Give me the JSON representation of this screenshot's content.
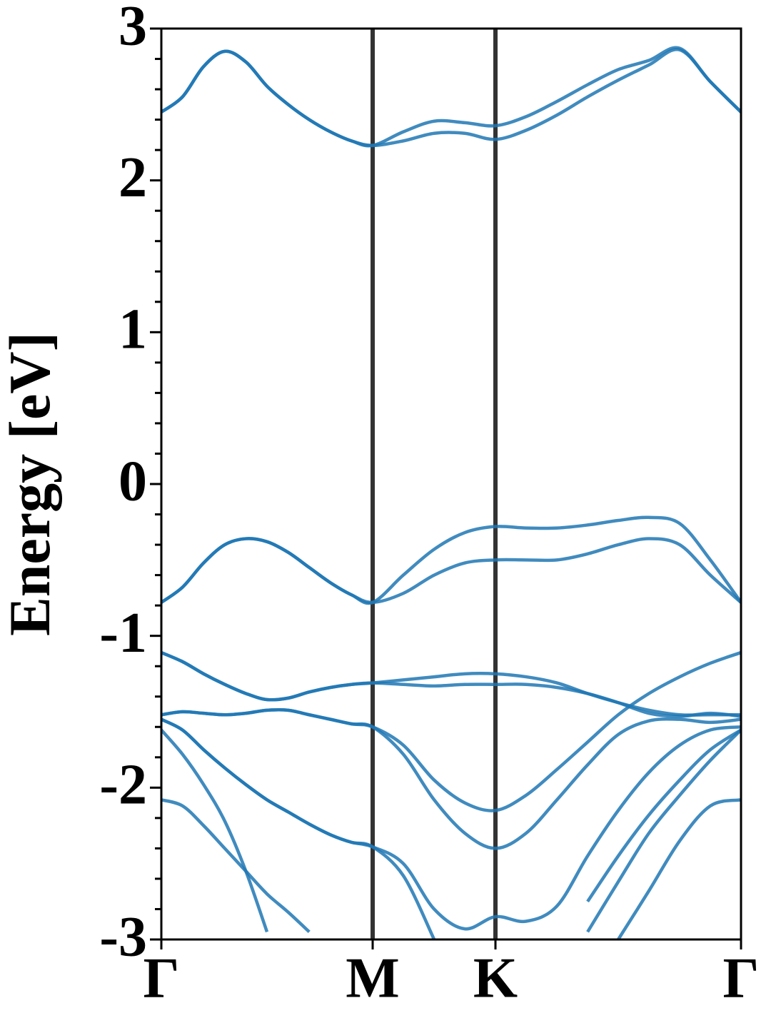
{
  "chart_data": {
    "type": "line",
    "y_label": "Energy [eV]",
    "x": [
      0,
      0.1,
      0.2,
      0.3,
      0.4,
      0.5,
      0.6,
      0.7,
      0.8,
      0.9,
      1.0,
      1.145,
      1.291,
      1.436,
      1.581,
      1.726,
      1.872,
      2.017,
      2.162,
      2.307,
      2.453,
      2.598,
      2.743
    ],
    "xlim": [
      0,
      2.743
    ],
    "xticks": [
      {
        "value": 0,
        "label": "Γ"
      },
      {
        "value": 1.0,
        "label": "M"
      },
      {
        "value": 1.581,
        "label": "K"
      },
      {
        "value": 2.743,
        "label": "Γ"
      }
    ],
    "ylim": [
      -3,
      3
    ],
    "yticks": [
      -3,
      -2,
      -1,
      0,
      1,
      2,
      3
    ],
    "yticks_minor": [
      -2.8,
      -2.6,
      -2.4,
      -2.2,
      -1.8,
      -1.6,
      -1.4,
      -1.2,
      -0.8,
      -0.6,
      -0.4,
      -0.2,
      0.2,
      0.4,
      0.6,
      0.8,
      1.2,
      1.4,
      1.6,
      1.8,
      2.2,
      2.4,
      2.6,
      2.8
    ],
    "symmetry_lines": true,
    "series": [
      {
        "color": "#1f77b4",
        "values": [
          2.45,
          2.55,
          2.75,
          2.85,
          2.78,
          2.62,
          2.5,
          2.4,
          2.32,
          2.26,
          2.23,
          2.26,
          2.31,
          2.31,
          2.27,
          2.33,
          2.43,
          2.55,
          2.66,
          2.76,
          2.86,
          2.65,
          2.45
        ]
      },
      {
        "color": "#1f77b4",
        "values": [
          2.45,
          2.55,
          2.75,
          2.85,
          2.78,
          2.62,
          2.5,
          2.4,
          2.32,
          2.26,
          2.23,
          2.32,
          2.39,
          2.38,
          2.36,
          2.42,
          2.52,
          2.63,
          2.73,
          2.79,
          2.87,
          2.65,
          2.45
        ]
      },
      {
        "color": "#1f77b4",
        "values": [
          -0.78,
          -0.68,
          -0.52,
          -0.4,
          -0.36,
          -0.38,
          -0.45,
          -0.55,
          -0.65,
          -0.73,
          -0.78,
          -0.6,
          -0.43,
          -0.32,
          -0.28,
          -0.29,
          -0.29,
          -0.27,
          -0.24,
          -0.22,
          -0.26,
          -0.5,
          -0.78
        ]
      },
      {
        "color": "#1f77b4",
        "values": [
          -0.78,
          -0.68,
          -0.52,
          -0.4,
          -0.36,
          -0.38,
          -0.45,
          -0.55,
          -0.65,
          -0.73,
          -0.78,
          -0.72,
          -0.6,
          -0.52,
          -0.5,
          -0.5,
          -0.5,
          -0.46,
          -0.4,
          -0.36,
          -0.4,
          -0.6,
          -0.78
        ]
      },
      {
        "color": "#1f77b4",
        "values": [
          -1.11,
          -1.17,
          -1.25,
          -1.32,
          -1.38,
          -1.42,
          -1.41,
          -1.37,
          -1.34,
          -1.32,
          -1.31,
          -1.29,
          -1.27,
          -1.25,
          -1.25,
          -1.27,
          -1.31,
          -1.38,
          -1.44,
          -1.49,
          -1.52,
          -1.52,
          -1.52
        ]
      },
      {
        "color": "#1f77b4",
        "values": [
          -1.11,
          -1.17,
          -1.25,
          -1.32,
          -1.38,
          -1.42,
          -1.41,
          -1.37,
          -1.34,
          -1.32,
          -1.31,
          -1.32,
          -1.33,
          -1.32,
          -1.32,
          -1.32,
          -1.34,
          -1.38,
          -1.44,
          -1.51,
          -1.53,
          -1.51,
          -1.53
        ]
      },
      {
        "color": "#1f77b4",
        "values": [
          -1.52,
          -1.5,
          -1.51,
          -1.52,
          -1.51,
          -1.49,
          -1.49,
          -1.52,
          -1.55,
          -1.58,
          -1.6,
          -1.72,
          -1.95,
          -2.1,
          -2.15,
          -2.05,
          -1.88,
          -1.7,
          -1.52,
          -1.38,
          -1.27,
          -1.18,
          -1.11
        ]
      },
      {
        "color": "#1f77b4",
        "values": [
          -1.52,
          -1.5,
          -1.51,
          -1.52,
          -1.51,
          -1.49,
          -1.49,
          -1.52,
          -1.55,
          -1.58,
          -1.6,
          -1.78,
          -2.08,
          -2.3,
          -2.4,
          -2.3,
          -2.08,
          -1.85,
          -1.65,
          -1.56,
          -1.55,
          -1.57,
          -1.55
        ]
      },
      {
        "color": "#1f77b4",
        "values": [
          -1.55,
          -1.62,
          -1.75,
          -1.87,
          -1.98,
          -2.08,
          -2.16,
          -2.24,
          -2.31,
          -2.36,
          -2.39,
          -2.5,
          -2.8,
          -2.93,
          -2.85,
          -2.88,
          -2.78,
          -2.45,
          -2.15,
          -1.9,
          -1.72,
          -1.62,
          -1.6
        ]
      },
      {
        "color": "#1f77b4",
        "values": [
          -1.55,
          -1.62,
          -1.75,
          -1.87,
          -1.98,
          -2.08,
          -2.16,
          -2.24,
          -2.31,
          -2.36,
          -2.39,
          -2.58,
          -3.0,
          null,
          null,
          null,
          null,
          -2.75,
          -2.45,
          -2.18,
          -1.95,
          -1.75,
          -1.62
        ]
      },
      {
        "color": "#1f77b4",
        "values": [
          -1.62,
          -1.78,
          -1.98,
          -2.22,
          -2.55,
          -2.95,
          null,
          null,
          null,
          null,
          null,
          null,
          null,
          null,
          null,
          null,
          null,
          -2.95,
          -2.62,
          -2.3,
          -2.05,
          -1.82,
          -1.62
        ]
      },
      {
        "color": "#1f77b4",
        "values": [
          -2.08,
          -2.12,
          -2.25,
          -2.4,
          -2.55,
          -2.7,
          -2.82,
          -2.95,
          null,
          null,
          null,
          null,
          null,
          null,
          null,
          null,
          null,
          null,
          -3.0,
          -2.68,
          -2.35,
          -2.12,
          -2.08
        ]
      }
    ]
  }
}
